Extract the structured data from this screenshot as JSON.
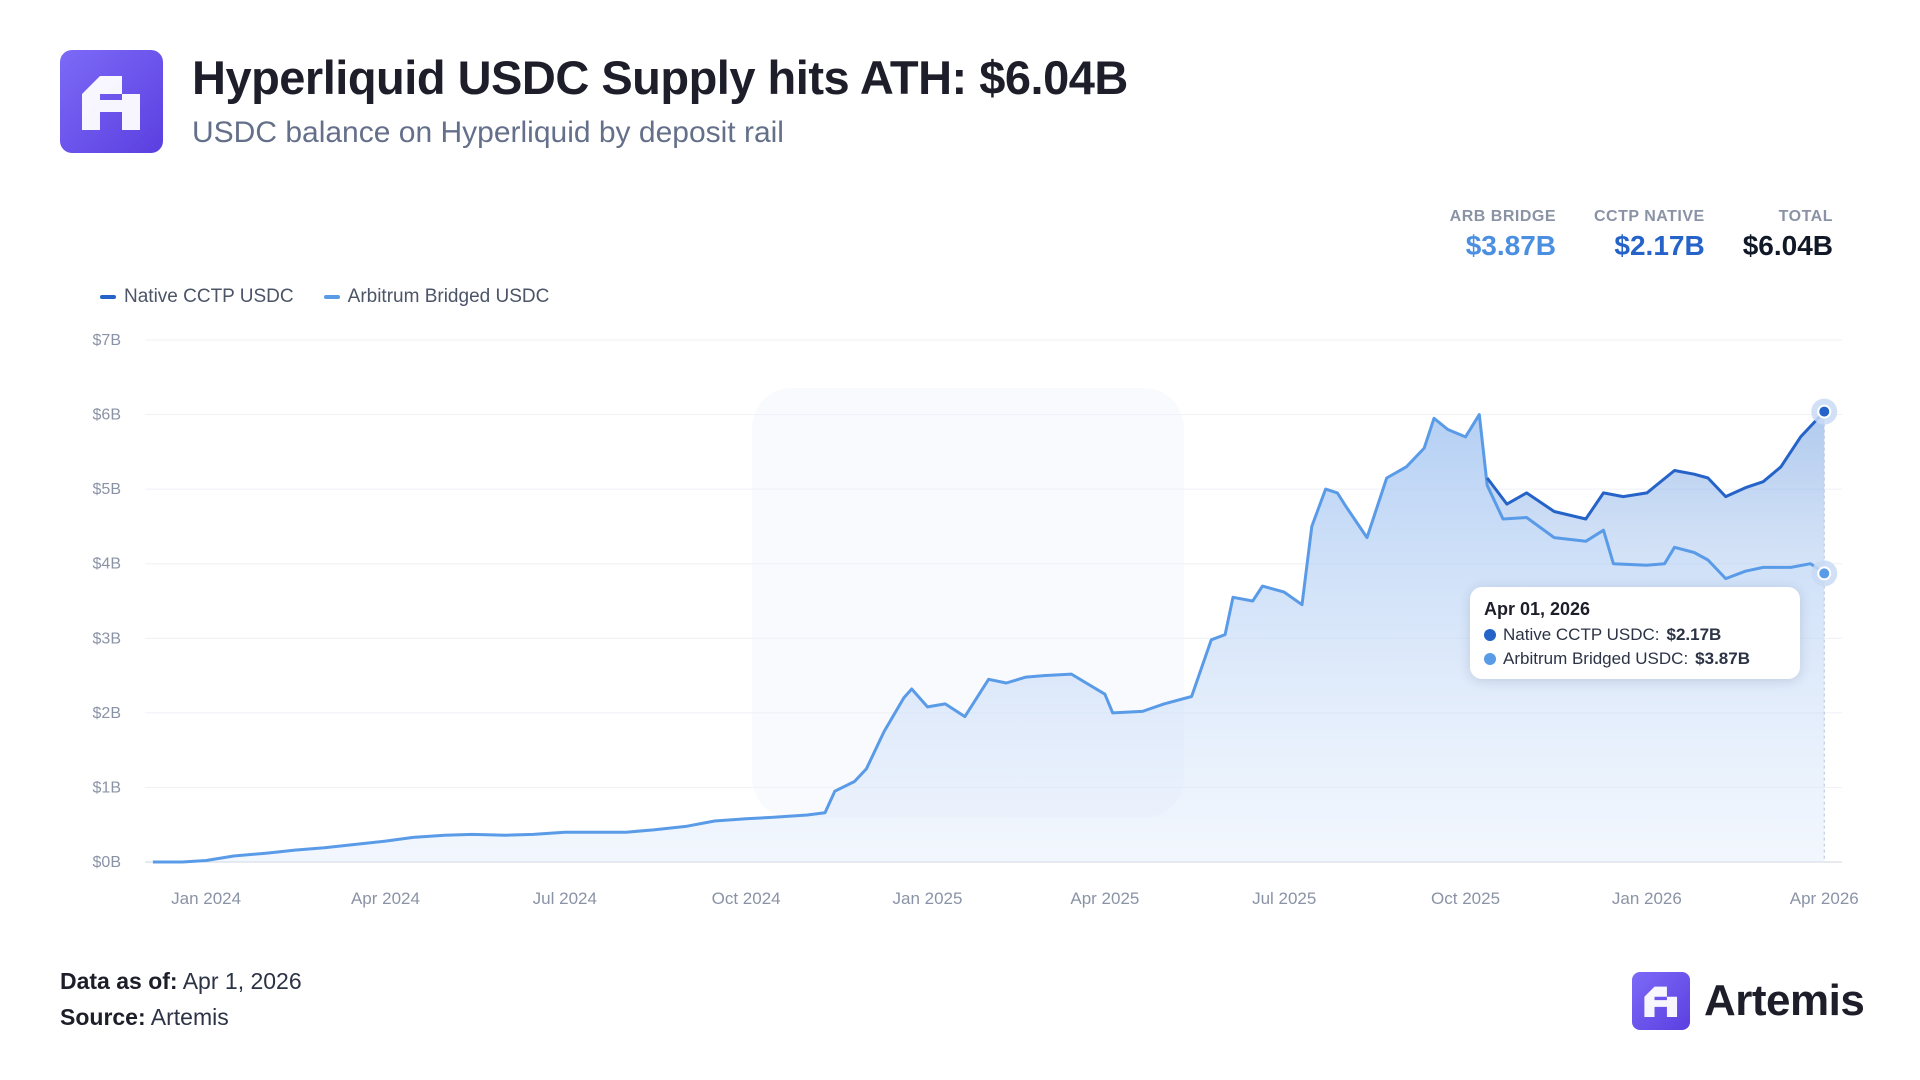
{
  "header": {
    "logo_icon": "hyperliquid-artemis-logo-icon",
    "title": "Hyperliquid USDC Supply hits ATH: $6.04B",
    "subtitle": "USDC balance on Hyperliquid by deposit rail"
  },
  "stats": [
    {
      "label": "ARB BRIDGE",
      "value": "$3.87B",
      "color": "#4a8fe0"
    },
    {
      "label": "CCTP NATIVE",
      "value": "$2.17B",
      "color": "#2563c9"
    },
    {
      "label": "TOTAL",
      "value": "$6.04B",
      "color": "#111827"
    }
  ],
  "tooltip": {
    "date": "Apr 01, 2026",
    "rows": [
      {
        "label": "Native CCTP USDC:",
        "value": "$2.17B",
        "color": "#2563c9"
      },
      {
        "label": "Arbitrum Bridged USDC:",
        "value": "$3.87B",
        "color": "#5a9be8"
      }
    ]
  },
  "footer": {
    "data_as_of_label": "Data as of:",
    "data_as_of_value": "Apr 1, 2026",
    "source_label": "Source:",
    "source_value": "Artemis"
  },
  "brand": {
    "name": "Artemis",
    "icon": "artemis-logo-icon"
  },
  "chart_data": {
    "type": "area",
    "title": "Hyperliquid USDC Supply hits ATH: $6.04B",
    "subtitle": "USDC balance on Hyperliquid by deposit rail",
    "xlabel": "",
    "ylabel": "",
    "x_ticks": [
      "Jan 2024",
      "Apr 2024",
      "Jul 2024",
      "Oct 2024",
      "Jan 2025",
      "Apr 2025",
      "Jul 2025",
      "Oct 2025",
      "Jan 2026",
      "Apr 2026"
    ],
    "y_ticks": [
      "$0B",
      "$1B",
      "$2B",
      "$3B",
      "$4B",
      "$5B",
      "$6B",
      "$7B"
    ],
    "ylim": [
      0,
      7
    ],
    "xlim": [
      "2023-12-01",
      "2026-04-10"
    ],
    "grid": true,
    "legend_position": "top-left",
    "stacked": true,
    "series": [
      {
        "name": "Arbitrum Bridged USDC",
        "color": "#5a9be8",
        "points": [
          [
            "2023-12-05",
            0.0
          ],
          [
            "2023-12-20",
            0.0
          ],
          [
            "2024-01-01",
            0.02
          ],
          [
            "2024-01-15",
            0.08
          ],
          [
            "2024-02-01",
            0.12
          ],
          [
            "2024-02-15",
            0.16
          ],
          [
            "2024-03-01",
            0.19
          ],
          [
            "2024-03-15",
            0.23
          ],
          [
            "2024-04-01",
            0.28
          ],
          [
            "2024-04-15",
            0.33
          ],
          [
            "2024-05-01",
            0.36
          ],
          [
            "2024-05-15",
            0.37
          ],
          [
            "2024-06-01",
            0.36
          ],
          [
            "2024-06-15",
            0.37
          ],
          [
            "2024-07-01",
            0.4
          ],
          [
            "2024-07-15",
            0.4
          ],
          [
            "2024-08-01",
            0.4
          ],
          [
            "2024-08-15",
            0.43
          ],
          [
            "2024-09-01",
            0.48
          ],
          [
            "2024-09-15",
            0.55
          ],
          [
            "2024-10-01",
            0.58
          ],
          [
            "2024-10-15",
            0.6
          ],
          [
            "2024-11-01",
            0.63
          ],
          [
            "2024-11-10",
            0.66
          ],
          [
            "2024-11-15",
            0.95
          ],
          [
            "2024-11-25",
            1.08
          ],
          [
            "2024-12-01",
            1.25
          ],
          [
            "2024-12-10",
            1.75
          ],
          [
            "2024-12-20",
            2.2
          ],
          [
            "2024-12-24",
            2.32
          ],
          [
            "2025-01-01",
            2.08
          ],
          [
            "2025-01-10",
            2.12
          ],
          [
            "2025-01-20",
            1.95
          ],
          [
            "2025-02-01",
            2.45
          ],
          [
            "2025-02-10",
            2.4
          ],
          [
            "2025-02-20",
            2.48
          ],
          [
            "2025-03-01",
            2.5
          ],
          [
            "2025-03-15",
            2.52
          ],
          [
            "2025-04-01",
            2.25
          ],
          [
            "2025-04-05",
            2.0
          ],
          [
            "2025-04-20",
            2.02
          ],
          [
            "2025-05-01",
            2.12
          ],
          [
            "2025-05-15",
            2.22
          ],
          [
            "2025-05-25",
            2.98
          ],
          [
            "2025-06-01",
            3.05
          ],
          [
            "2025-06-05",
            3.55
          ],
          [
            "2025-06-15",
            3.5
          ],
          [
            "2025-06-20",
            3.7
          ],
          [
            "2025-07-01",
            3.62
          ],
          [
            "2025-07-10",
            3.45
          ],
          [
            "2025-07-15",
            4.5
          ],
          [
            "2025-07-22",
            5.0
          ],
          [
            "2025-07-28",
            4.95
          ],
          [
            "2025-08-01",
            4.78
          ],
          [
            "2025-08-12",
            4.35
          ],
          [
            "2025-08-22",
            5.15
          ],
          [
            "2025-09-01",
            5.3
          ],
          [
            "2025-09-10",
            5.55
          ],
          [
            "2025-09-15",
            5.95
          ],
          [
            "2025-09-22",
            5.8
          ],
          [
            "2025-10-01",
            5.7
          ],
          [
            "2025-10-08",
            6.0
          ],
          [
            "2025-10-12",
            5.05
          ],
          [
            "2025-10-20",
            4.6
          ],
          [
            "2025-11-01",
            4.62
          ],
          [
            "2025-11-15",
            4.35
          ],
          [
            "2025-12-01",
            4.3
          ],
          [
            "2025-12-10",
            4.45
          ],
          [
            "2025-12-15",
            4.0
          ],
          [
            "2026-01-01",
            3.98
          ],
          [
            "2026-01-10",
            4.0
          ],
          [
            "2026-01-15",
            4.22
          ],
          [
            "2026-01-25",
            4.15
          ],
          [
            "2026-02-01",
            4.05
          ],
          [
            "2026-02-10",
            3.8
          ],
          [
            "2026-02-20",
            3.9
          ],
          [
            "2026-03-01",
            3.95
          ],
          [
            "2026-03-15",
            3.95
          ],
          [
            "2026-03-25",
            4.0
          ],
          [
            "2026-04-01",
            3.87
          ]
        ]
      },
      {
        "name": "Native CCTP USDC",
        "color": "#2563c9",
        "points": [
          [
            "2025-10-12",
            5.15
          ],
          [
            "2025-10-22",
            4.8
          ],
          [
            "2025-11-01",
            4.95
          ],
          [
            "2025-11-15",
            4.7
          ],
          [
            "2025-12-01",
            4.6
          ],
          [
            "2025-12-10",
            4.95
          ],
          [
            "2025-12-20",
            4.9
          ],
          [
            "2026-01-01",
            4.95
          ],
          [
            "2026-01-15",
            5.25
          ],
          [
            "2026-01-25",
            5.2
          ],
          [
            "2026-02-01",
            5.15
          ],
          [
            "2026-02-10",
            4.9
          ],
          [
            "2026-02-20",
            5.02
          ],
          [
            "2026-03-01",
            5.1
          ],
          [
            "2026-03-10",
            5.3
          ],
          [
            "2026-03-20",
            5.7
          ],
          [
            "2026-04-01",
            6.04
          ]
        ]
      }
    ]
  }
}
